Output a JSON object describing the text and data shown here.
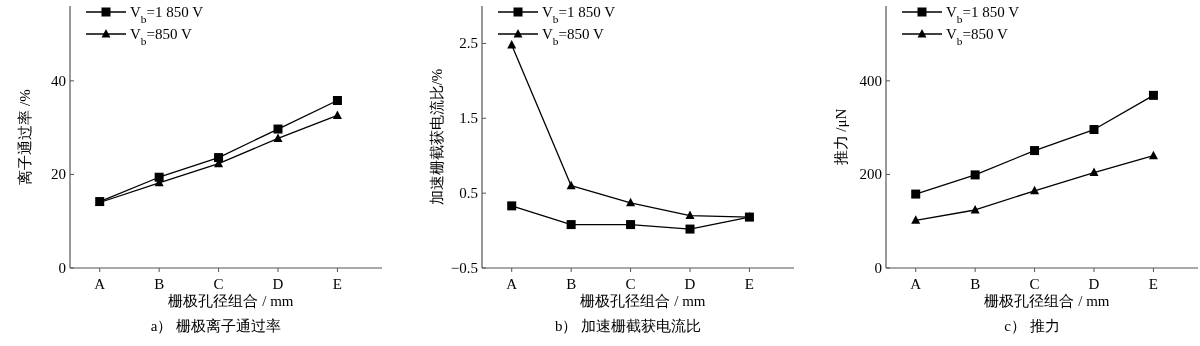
{
  "chart_data": [
    {
      "type": "line",
      "title": "a）  栅极离子通过率",
      "xlabel": "栅极孔径组合 / mm",
      "ylabel": "离子通过率 /%",
      "categories": [
        "A",
        "B",
        "C",
        "D",
        "E"
      ],
      "ylim": [
        0,
        56
      ],
      "yticks": [
        0,
        20,
        40
      ],
      "legend": "top left",
      "grid": false,
      "series": [
        {
          "name": "V$_{b}$=1 850 V",
          "color": "#000000",
          "marker": "square",
          "values": [
            14.2,
            19.4,
            23.6,
            29.7,
            35.8
          ]
        },
        {
          "name": "V$_{b}$=850 V",
          "color": "#000000",
          "marker": "triangle",
          "values": [
            14.0,
            18.2,
            22.3,
            27.7,
            32.6
          ]
        }
      ]
    },
    {
      "type": "line",
      "title": "b）  加速栅截获电流比",
      "xlabel": "栅极孔径组合 / mm",
      "ylabel": "加速栅截获电流比/%",
      "categories": [
        "A",
        "B",
        "C",
        "D",
        "E"
      ],
      "ylim": [
        -0.5,
        3.0
      ],
      "yticks": [
        -0.5,
        0.5,
        1.5,
        2.5
      ],
      "legend": "top left",
      "grid": false,
      "series": [
        {
          "name": "V$_{b}$=1 850 V",
          "color": "#000000",
          "marker": "square",
          "values": [
            0.33,
            0.08,
            0.08,
            0.02,
            0.18
          ]
        },
        {
          "name": "V$_{b}$=850 V",
          "color": "#000000",
          "marker": "triangle",
          "values": [
            2.48,
            0.6,
            0.37,
            0.2,
            0.18
          ]
        }
      ]
    },
    {
      "type": "line",
      "title": "c）  推力",
      "xlabel": "栅极孔径组合 / mm",
      "ylabel": "推力 /μN",
      "categories": [
        "A",
        "B",
        "C",
        "D",
        "E"
      ],
      "ylim": [
        0,
        560
      ],
      "yticks": [
        0,
        200,
        400
      ],
      "legend": "top left",
      "grid": false,
      "series": [
        {
          "name": "V$_{b}$=1 850 V",
          "color": "#000000",
          "marker": "square",
          "values": [
            158,
            199,
            251,
            296,
            369
          ]
        },
        {
          "name": "V$_{b}$=850 V",
          "color": "#000000",
          "marker": "triangle",
          "values": [
            102,
            124,
            165,
            204,
            240
          ]
        }
      ]
    }
  ]
}
